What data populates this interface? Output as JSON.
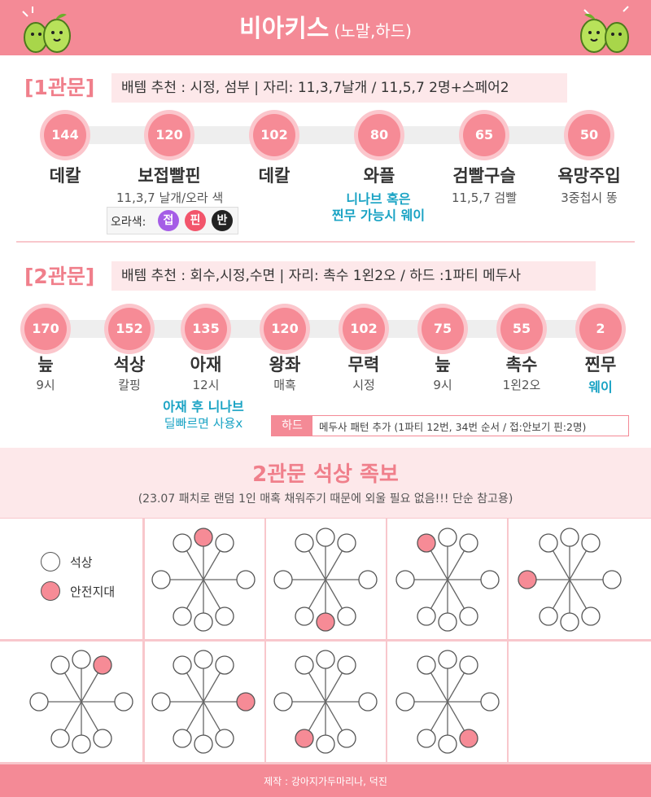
{
  "header": {
    "title": "비아키스",
    "subtitle": "(노말,하드)"
  },
  "gate1": {
    "label": "[1관문]",
    "desc": "배템 추천 : 시정, 섬부  | 자리: 11,3,7날개 / 11,5,7 2명+스페어2",
    "items": [
      {
        "hp": "144",
        "name": "데칼",
        "note": ""
      },
      {
        "hp": "120",
        "name": "보접빨핀",
        "note": "11,3,7 날개/오라 색"
      },
      {
        "hp": "102",
        "name": "데칼",
        "note": ""
      },
      {
        "hp": "80",
        "name": "와플",
        "note": ""
      },
      {
        "hp": "65",
        "name": "검빨구슬",
        "note": "11,5,7 검빨"
      },
      {
        "hp": "50",
        "name": "욕망주입",
        "note": "3중첩시 똥"
      }
    ],
    "waffle_note": [
      "니나브 혹은",
      "찐무 가능시 웨이"
    ],
    "aura_label": "오라색:",
    "aura_badges": [
      {
        "text": "접",
        "color": "#a55de6"
      },
      {
        "text": "핀",
        "color": "#f2556b"
      },
      {
        "text": "반",
        "color": "#222222"
      }
    ]
  },
  "gate2": {
    "label": "[2관문]",
    "desc": "배템 추천 : 회수,시정,수면  | 자리: 촉수 1왼2오 / 하드 :1파티 메두사",
    "items": [
      {
        "hp": "170",
        "name": "늪",
        "note": "9시",
        "note_blue": false
      },
      {
        "hp": "152",
        "name": "석상",
        "note": "칼핑",
        "note_blue": false
      },
      {
        "hp": "135",
        "name": "아재",
        "note": "12시",
        "note_blue": false
      },
      {
        "hp": "120",
        "name": "왕좌",
        "note": "매혹",
        "note_blue": false
      },
      {
        "hp": "102",
        "name": "무력",
        "note": "시정",
        "note_blue": false
      },
      {
        "hp": "75",
        "name": "늪",
        "note": "9시",
        "note_blue": false
      },
      {
        "hp": "55",
        "name": "촉수",
        "note": "1왼2오",
        "note_blue": false
      },
      {
        "hp": "2",
        "name": "찐무",
        "note": "웨이",
        "note_blue": true
      }
    ],
    "ajae_note": [
      "아재 후 니나브",
      "딜빠르면 사용x"
    ],
    "hard_badge": "하드",
    "hard_text": "메두사 패턴 추가 (1파티 12번, 34번 순서 / 접:안보기 핀:2명)"
  },
  "pattern": {
    "title": "2관문 석상 족보",
    "subtitle": "(23.07 패치로 랜덤 1인 매혹 채워주기 때문에 외울 필요 없음!!! 단순 참고용)",
    "legend": [
      {
        "label": "석상",
        "type": "statue"
      },
      {
        "label": "안전지대",
        "type": "safe"
      }
    ],
    "safe_spots": [
      "12시",
      "6시",
      "11시",
      "9시",
      "1시",
      "3시",
      "7시",
      "5시"
    ]
  },
  "colors": {
    "pink": "#f48a96",
    "light_pink": "#fde8ea",
    "blue": "#1aa3c4"
  },
  "footer": {
    "credit": "제작 : 강아지가두마리나, 덕진"
  }
}
